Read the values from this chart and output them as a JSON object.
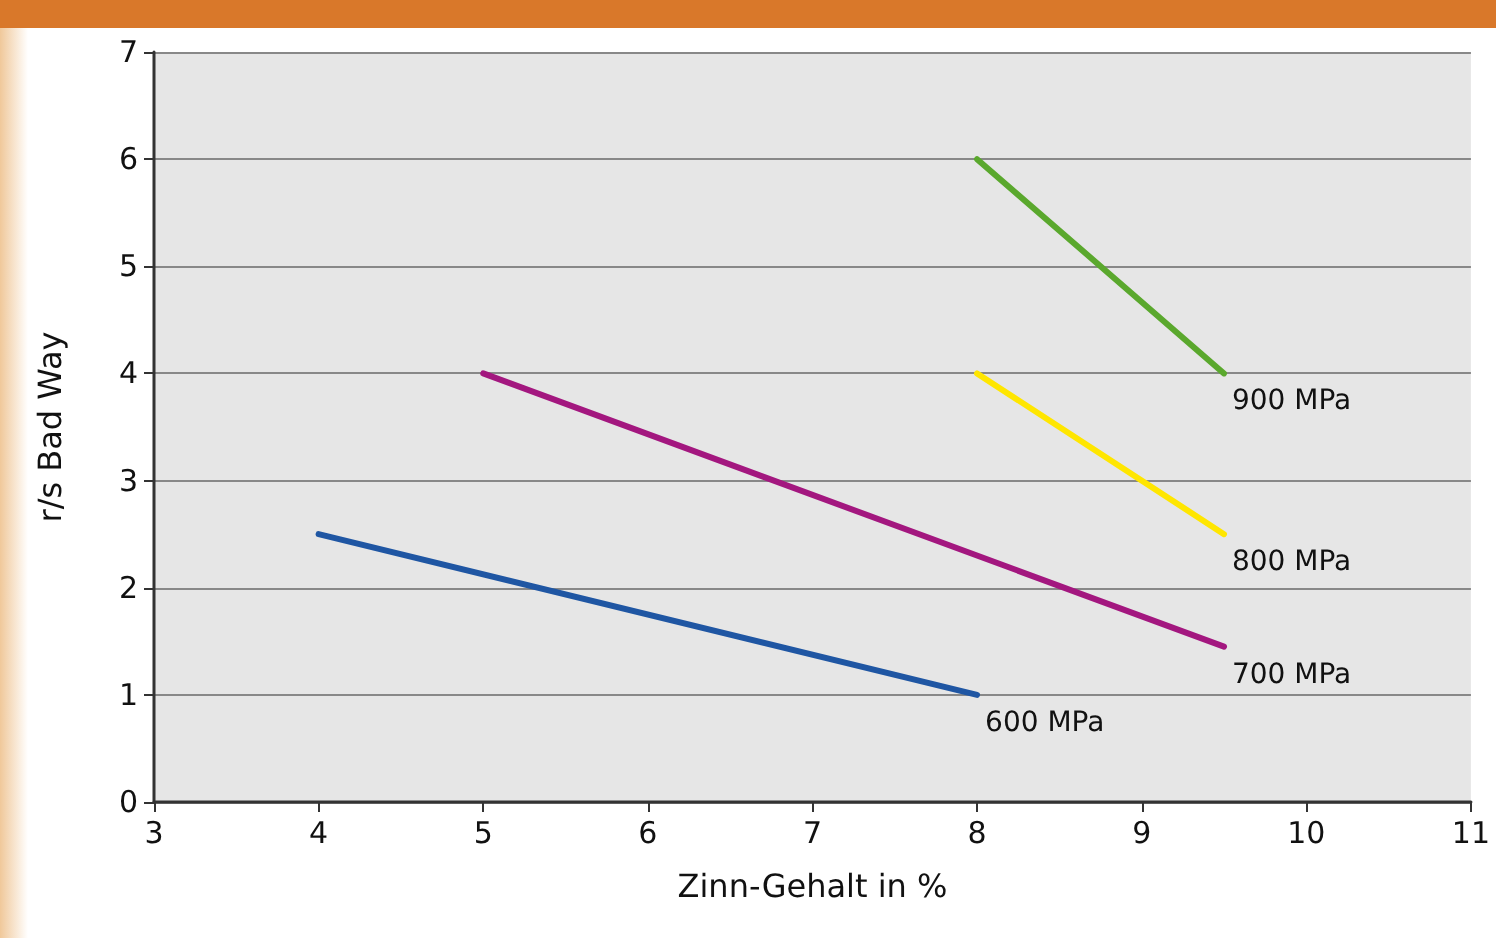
{
  "chart_data": {
    "type": "line",
    "xlabel": "Zinn-Gehalt in %",
    "ylabel": "r/s Bad Way",
    "xlim": [
      3,
      11
    ],
    "xticks": [
      3,
      4,
      5,
      6,
      7,
      8,
      9,
      10,
      11
    ],
    "ylim": [
      0,
      7
    ],
    "yticks": [
      0,
      1,
      2,
      3,
      4,
      5,
      6,
      7
    ],
    "grid": "y",
    "marker": "none",
    "line_style": "solid",
    "legend": false,
    "series": [
      {
        "name": "600 MPa",
        "color": "#1f56a3",
        "x": [
          4,
          8
        ],
        "values": [
          2.5,
          1
        ]
      },
      {
        "name": "700 MPa",
        "color": "#a3177f",
        "x": [
          5,
          9.5
        ],
        "values": [
          4,
          1.45
        ]
      },
      {
        "name": "800 MPa",
        "color": "#ffe600",
        "x": [
          8,
          9.5
        ],
        "values": [
          4,
          2.5
        ]
      },
      {
        "name": "900 MPa",
        "color": "#5aa82d",
        "x": [
          8,
          9.5
        ],
        "values": [
          6,
          4
        ]
      }
    ]
  }
}
